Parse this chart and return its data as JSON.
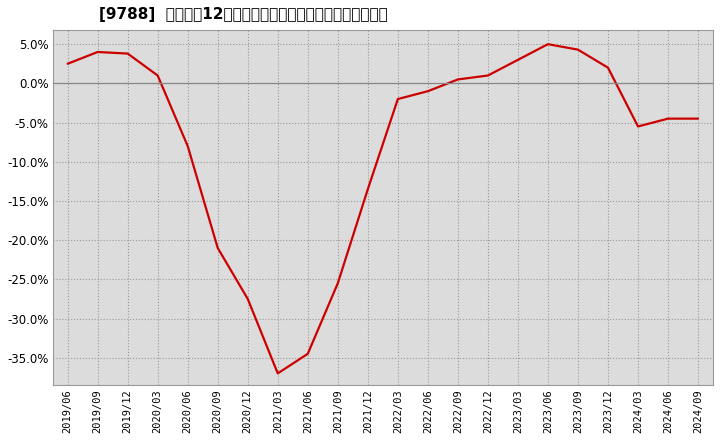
{
  "title": "[9788]  売上高の12か月移動合計の対前年同期増減率の推移",
  "line_color": "#cc0000",
  "bg_color": "#ffffff",
  "plot_bg_color": "#dcdcdc",
  "ylim": [
    -0.385,
    0.068
  ],
  "yticks": [
    0.05,
    0.0,
    -0.05,
    -0.1,
    -0.15,
    -0.2,
    -0.25,
    -0.3,
    -0.35
  ],
  "dates": [
    "2019/06",
    "2019/09",
    "2019/12",
    "2020/03",
    "2020/06",
    "2020/09",
    "2020/12",
    "2021/03",
    "2021/06",
    "2021/09",
    "2021/12",
    "2022/03",
    "2022/06",
    "2022/09",
    "2022/12",
    "2023/03",
    "2023/06",
    "2023/09",
    "2023/12",
    "2024/03",
    "2024/06",
    "2024/09"
  ],
  "values": [
    0.025,
    0.04,
    0.038,
    0.01,
    -0.08,
    -0.21,
    -0.275,
    -0.37,
    -0.345,
    -0.255,
    -0.135,
    -0.02,
    -0.01,
    0.005,
    0.01,
    0.03,
    0.05,
    0.043,
    0.02,
    -0.055,
    -0.045,
    -0.045
  ]
}
